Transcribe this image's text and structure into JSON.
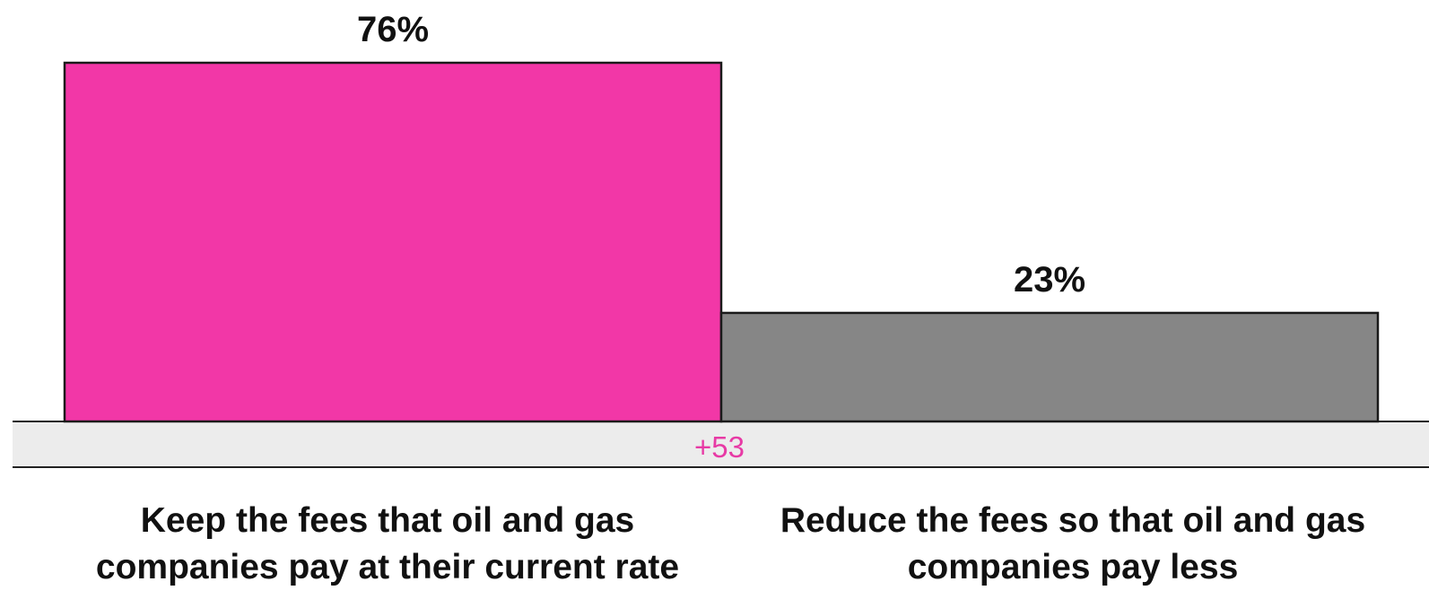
{
  "chart_data": {
    "type": "bar",
    "categories": [
      "Keep the fees that oil and gas companies pay at their current rate",
      "Reduce the fees so that oil and gas companies pay less"
    ],
    "values": [
      76,
      23
    ],
    "data_labels": [
      "76%",
      "23%"
    ],
    "colors": [
      "#f237a7",
      "#868686"
    ],
    "ylim": [
      0,
      76
    ],
    "grid": false,
    "legend": "none",
    "margin_label": "+53",
    "margin_color": "#e73aa5",
    "band_color": "#ececec",
    "title": "",
    "xlabel": "",
    "ylabel": ""
  }
}
